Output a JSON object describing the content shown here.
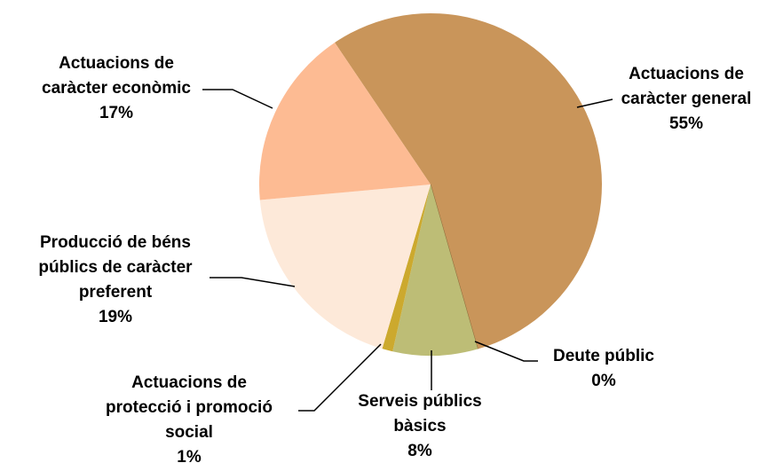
{
  "chart_data": {
    "type": "pie",
    "categories": [
      "Actuacions de caràcter general",
      "Deute públic",
      "Serveis públics bàsics",
      "Actuacions de protecció i promoció social",
      "Producció de béns públics de caràcter preferent",
      "Actuacions de caràcter econòmic"
    ],
    "values": [
      55,
      0,
      8,
      1,
      19,
      17
    ],
    "value_labels": [
      "55%",
      "0%",
      "8%",
      "1%",
      "19%",
      "17%"
    ],
    "colors": [
      "#C9955A",
      "#8A6A3A",
      "#BDBD76",
      "#CCA92E",
      "#FDE9D9",
      "#FDBB93"
    ]
  }
}
